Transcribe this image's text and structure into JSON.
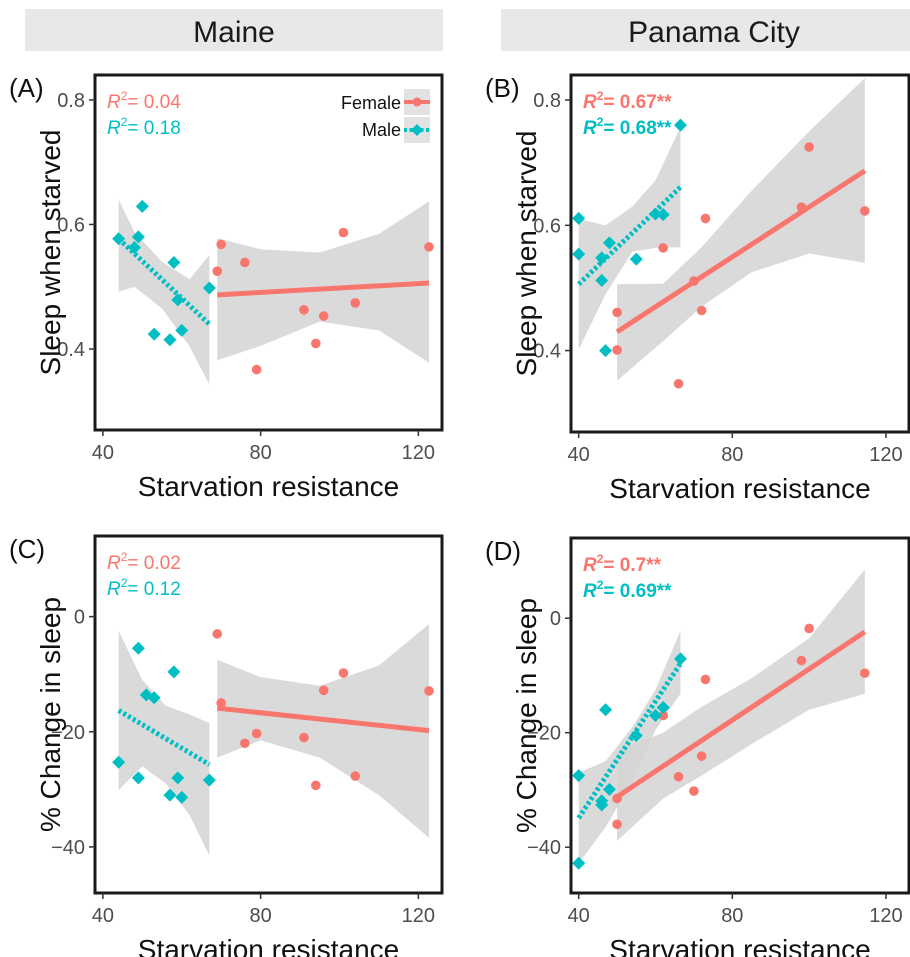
{
  "colors": {
    "female": "#F8766D",
    "male": "#00BFC4",
    "ribbon": "#D3D3D3",
    "strip": "#E8E8E8"
  },
  "strips": [
    "Maine",
    "Panama City"
  ],
  "legend": {
    "female": "Female",
    "male": "Male"
  },
  "chart_data": [
    {
      "panel_label": "(A)",
      "type": "scatter",
      "xlabel": "Starvation resistance",
      "ylabel": "Sleep when starved",
      "xlim": [
        38,
        126
      ],
      "ylim": [
        0.27,
        0.84
      ],
      "xticks": [
        40,
        80,
        120
      ],
      "yticks": [
        0.4,
        0.6,
        0.8
      ],
      "ytick_labels": [
        "0.4",
        "0.6",
        "0.8"
      ],
      "grid": false,
      "legend": "top-right",
      "r2": {
        "female_label": "R",
        "female_value": "= 0.04",
        "male_label": "R",
        "male_value": "= 0.18",
        "bold": false
      },
      "series": [
        {
          "name": "Female",
          "points": [
            [
              69,
              0.525
            ],
            [
              70,
              0.568
            ],
            [
              76,
              0.539
            ],
            [
              79,
              0.367
            ],
            [
              91,
              0.463
            ],
            [
              94,
              0.409
            ],
            [
              96,
              0.453
            ],
            [
              101,
              0.587
            ],
            [
              104,
              0.474
            ],
            [
              122.7,
              0.564
            ]
          ],
          "fit": [
            [
              69,
              0.487
            ],
            [
              122.7,
              0.506
            ]
          ],
          "band_upper": [
            [
              69,
              0.578
            ],
            [
              80,
              0.56
            ],
            [
              95,
              0.555
            ],
            [
              110,
              0.585
            ],
            [
              122.7,
              0.637
            ]
          ],
          "band_lower": [
            [
              69,
              0.382
            ],
            [
              80,
              0.405
            ],
            [
              95,
              0.444
            ],
            [
              110,
              0.43
            ],
            [
              122.7,
              0.378
            ]
          ]
        },
        {
          "name": "Male",
          "points": [
            [
              44,
              0.577
            ],
            [
              48,
              0.563
            ],
            [
              49,
              0.58
            ],
            [
              50,
              0.629
            ],
            [
              53,
              0.424
            ],
            [
              57,
              0.415
            ],
            [
              58,
              0.539
            ],
            [
              59,
              0.479
            ],
            [
              60,
              0.43
            ],
            [
              67,
              0.498
            ]
          ],
          "fit": [
            [
              44,
              0.577
            ],
            [
              67,
              0.44
            ]
          ],
          "band_upper": [
            [
              44,
              0.64
            ],
            [
              48,
              0.588
            ],
            [
              55,
              0.54
            ],
            [
              62,
              0.512
            ],
            [
              67,
              0.551
            ]
          ],
          "band_lower": [
            [
              44,
              0.492
            ],
            [
              48,
              0.5
            ],
            [
              55,
              0.465
            ],
            [
              62,
              0.404
            ],
            [
              67,
              0.343
            ]
          ]
        }
      ]
    },
    {
      "panel_label": "(B)",
      "type": "scatter",
      "xlabel": "Starvation resistance",
      "ylabel": "Sleep when starved",
      "xlim": [
        38,
        126
      ],
      "ylim": [
        0.27,
        0.84
      ],
      "xticks": [
        40,
        80,
        120
      ],
      "yticks": [
        0.4,
        0.6,
        0.8
      ],
      "ytick_labels": [
        "0.4",
        "0.6",
        "0.8"
      ],
      "grid": false,
      "legend": "none",
      "r2": {
        "female_label": "R",
        "female_value": "= 0.67**",
        "male_label": "R",
        "male_value": "= 0.68**",
        "bold": true
      },
      "series": [
        {
          "name": "Female",
          "points": [
            [
              50,
              0.461
            ],
            [
              50,
              0.401
            ],
            [
              62,
              0.564
            ],
            [
              66,
              0.347
            ],
            [
              70,
              0.511
            ],
            [
              72,
              0.464
            ],
            [
              73,
              0.611
            ],
            [
              98,
              0.629
            ],
            [
              100,
              0.725
            ],
            [
              114.5,
              0.623
            ]
          ],
          "fit": [
            [
              50,
              0.43
            ],
            [
              114.5,
              0.687
            ]
          ],
          "band_upper": [
            [
              50,
              0.506
            ],
            [
              62,
              0.507
            ],
            [
              72,
              0.565
            ],
            [
              85,
              0.655
            ],
            [
              100,
              0.75
            ],
            [
              114.5,
              0.835
            ]
          ],
          "band_lower": [
            [
              50,
              0.352
            ],
            [
              62,
              0.415
            ],
            [
              72,
              0.47
            ],
            [
              85,
              0.525
            ],
            [
              100,
              0.555
            ],
            [
              114.5,
              0.54
            ]
          ]
        },
        {
          "name": "Male",
          "points": [
            [
              40,
              0.554
            ],
            [
              40,
              0.611
            ],
            [
              46,
              0.512
            ],
            [
              46,
              0.548
            ],
            [
              47,
              0.4
            ],
            [
              48,
              0.572
            ],
            [
              55,
              0.546
            ],
            [
              60,
              0.618
            ],
            [
              62,
              0.617
            ],
            [
              66.5,
              0.76
            ]
          ],
          "fit": [
            [
              40,
              0.506
            ],
            [
              66.5,
              0.661
            ]
          ],
          "band_upper": [
            [
              40,
              0.61
            ],
            [
              47,
              0.6
            ],
            [
              54,
              0.63
            ],
            [
              60,
              0.672
            ],
            [
              66.5,
              0.757
            ]
          ],
          "band_lower": [
            [
              40,
              0.402
            ],
            [
              47,
              0.49
            ],
            [
              54,
              0.558
            ],
            [
              60,
              0.564
            ],
            [
              66.5,
              0.565
            ]
          ]
        }
      ]
    },
    {
      "panel_label": "(C)",
      "type": "scatter",
      "xlabel": "Starvation resistance",
      "ylabel": "% Change in sleep",
      "xlim": [
        38,
        126
      ],
      "ylim": [
        -48,
        14
      ],
      "xticks": [
        40,
        80,
        120
      ],
      "yticks": [
        -40,
        -20,
        0
      ],
      "ytick_labels": [
        "−40",
        "−20",
        "0"
      ],
      "grid": false,
      "legend": "none",
      "r2": {
        "female_label": "R",
        "female_value": "= 0.02",
        "male_label": "R",
        "male_value": "= 0.12",
        "bold": false
      },
      "series": [
        {
          "name": "Female",
          "points": [
            [
              69,
              -3.0
            ],
            [
              70,
              -15.0
            ],
            [
              76,
              -22.0
            ],
            [
              79,
              -20.3
            ],
            [
              91,
              -21.0
            ],
            [
              94,
              -29.3
            ],
            [
              96,
              -12.8
            ],
            [
              101,
              -9.8
            ],
            [
              104,
              -27.7
            ],
            [
              122.7,
              -12.9
            ]
          ],
          "fit": [
            [
              69,
              -15.9
            ],
            [
              122.7,
              -19.8
            ]
          ],
          "band_upper": [
            [
              69,
              -7.5
            ],
            [
              80,
              -10.5
            ],
            [
              95,
              -12.0
            ],
            [
              110,
              -8.5
            ],
            [
              122.7,
              -1.3
            ]
          ],
          "band_lower": [
            [
              69,
              -24.5
            ],
            [
              80,
              -21.5
            ],
            [
              95,
              -24.5
            ],
            [
              110,
              -31.0
            ],
            [
              122.7,
              -38.4
            ]
          ]
        },
        {
          "name": "Male",
          "points": [
            [
              44,
              -25.3
            ],
            [
              49,
              -28.0
            ],
            [
              49,
              -5.5
            ],
            [
              51,
              -13.6
            ],
            [
              53,
              -14.1
            ],
            [
              57,
              -31.0
            ],
            [
              58,
              -9.6
            ],
            [
              59,
              -28.0
            ],
            [
              60,
              -31.4
            ],
            [
              67,
              -28.4
            ]
          ],
          "fit": [
            [
              44,
              -16.3
            ],
            [
              67,
              -25.7
            ]
          ],
          "band_upper": [
            [
              44,
              -2.5
            ],
            [
              50,
              -11.0
            ],
            [
              56,
              -15.5
            ],
            [
              62,
              -17.0
            ],
            [
              67,
              -18.5
            ]
          ],
          "band_lower": [
            [
              44,
              -30.1
            ],
            [
              50,
              -26.0
            ],
            [
              56,
              -29.0
            ],
            [
              62,
              -34.5
            ],
            [
              67,
              -41.5
            ]
          ]
        }
      ]
    },
    {
      "panel_label": "(D)",
      "type": "scatter",
      "xlabel": "Starvation resistance",
      "ylabel": "% Change in sleep",
      "xlim": [
        38,
        126
      ],
      "ylim": [
        -48,
        14
      ],
      "xticks": [
        40,
        80,
        120
      ],
      "yticks": [
        -40,
        -20,
        0
      ],
      "ytick_labels": [
        "−40",
        "−20",
        "0"
      ],
      "grid": false,
      "legend": "none",
      "r2": {
        "female_label": "R",
        "female_value": "= 0.7**",
        "male_label": "R",
        "male_value": "= 0.69**",
        "bold": true
      },
      "series": [
        {
          "name": "Female",
          "points": [
            [
              50,
              -31.5
            ],
            [
              50,
              -36.0
            ],
            [
              62,
              -17.0
            ],
            [
              66,
              -27.7
            ],
            [
              70,
              -30.2
            ],
            [
              72,
              -24.1
            ],
            [
              73,
              -10.7
            ],
            [
              98,
              -7.4
            ],
            [
              100,
              -1.8
            ],
            [
              114.5,
              -9.6
            ]
          ],
          "fit": [
            [
              50,
              -31.2
            ],
            [
              114.5,
              -2.4
            ]
          ],
          "band_upper": [
            [
              50,
              -23.3
            ],
            [
              62,
              -20.0
            ],
            [
              72,
              -15.5
            ],
            [
              85,
              -10.5
            ],
            [
              100,
              -3.5
            ],
            [
              114.5,
              8.5
            ]
          ],
          "band_lower": [
            [
              50,
              -38.9
            ],
            [
              62,
              -31.5
            ],
            [
              72,
              -27.5
            ],
            [
              85,
              -22.0
            ],
            [
              100,
              -16.0
            ],
            [
              114.5,
              -13.2
            ]
          ]
        },
        {
          "name": "Male",
          "points": [
            [
              40,
              -27.5
            ],
            [
              40,
              -42.8
            ],
            [
              46,
              -32.6
            ],
            [
              46,
              -31.9
            ],
            [
              47,
              -16.0
            ],
            [
              48,
              -29.9
            ],
            [
              55,
              -20.5
            ],
            [
              60,
              -17.0
            ],
            [
              62,
              -15.6
            ],
            [
              66.5,
              -7.1
            ]
          ],
          "fit": [
            [
              40,
              -34.9
            ],
            [
              66.5,
              -7.9
            ]
          ],
          "band_upper": [
            [
              40,
              -27.0
            ],
            [
              47,
              -25.0
            ],
            [
              54,
              -19.0
            ],
            [
              60,
              -12.5
            ],
            [
              66.5,
              -2.2
            ]
          ],
          "band_lower": [
            [
              40,
              -42.8
            ],
            [
              47,
              -36.5
            ],
            [
              54,
              -28.5
            ],
            [
              60,
              -19.5
            ],
            [
              66.5,
              -13.2
            ]
          ]
        }
      ]
    }
  ]
}
